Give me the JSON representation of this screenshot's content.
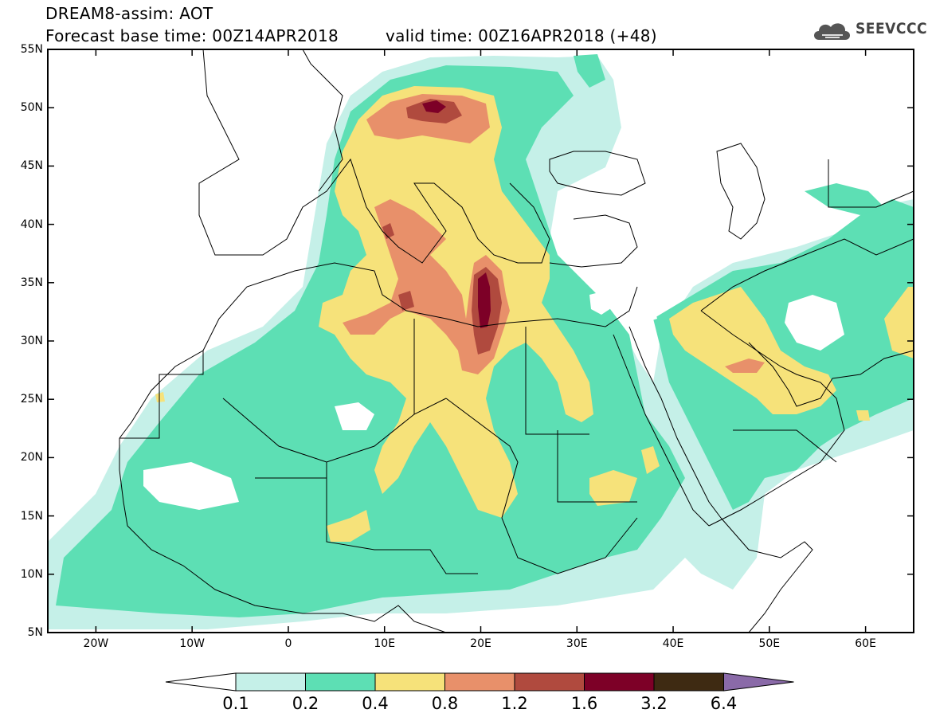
{
  "header": {
    "title_line1": "DREAM8-assim: AOT",
    "title_line2": "Forecast base time: 00Z14APR2018",
    "valid_time": "valid time: 00Z16APR2018 (+48)",
    "logo_text": "SEEVCCC",
    "logo_icon": "cloud-logo-icon"
  },
  "axes": {
    "lat_labels": [
      "55N",
      "50N",
      "45N",
      "40N",
      "35N",
      "30N",
      "25N",
      "20N",
      "15N",
      "10N",
      "5N"
    ],
    "lon_labels": [
      "20W",
      "10W",
      "0",
      "10E",
      "20E",
      "30E",
      "40E",
      "50E",
      "60E"
    ]
  },
  "legend": {
    "labels": [
      "0.1",
      "0.2",
      "0.4",
      "0.8",
      "1.2",
      "1.6",
      "3.2",
      "6.4"
    ],
    "colors": [
      "#ffffff",
      "#c5f0e8",
      "#5ddfb4",
      "#f6e27a",
      "#e8906a",
      "#b04a3e",
      "#7d0027",
      "#3e2a12",
      "#8a6aa8"
    ]
  },
  "map": {
    "variable": "AOT",
    "colors": {
      "band_0_1": "#c5f0e8",
      "band_0_2": "#5ddfb4",
      "band_0_4": "#f6e27a",
      "band_0_8": "#e8906a",
      "band_1_2": "#b04a3e",
      "band_1_6": "#7d0027"
    }
  }
}
